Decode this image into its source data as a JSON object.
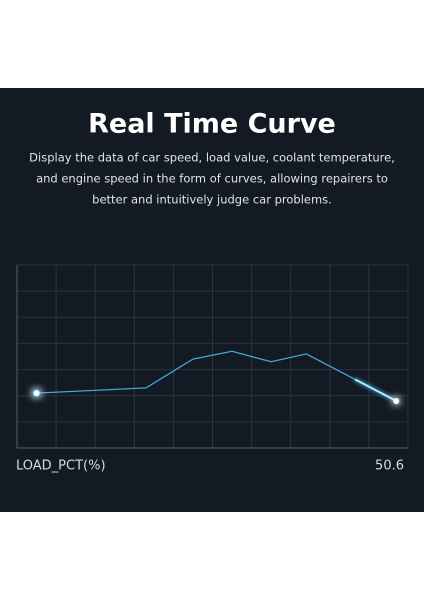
{
  "chart_data": {
    "type": "line",
    "title": "Real Time Curve",
    "subtitle": [
      "Display the data of car speed, load value, coolant temperature,",
      "and engine speed in the form of curves, allowing repairers to",
      "better and intuitively judge car problems."
    ],
    "x": [
      0.5,
      3.3,
      4.5,
      5.5,
      6.5,
      7.4,
      9.7
    ],
    "series": [
      {
        "name": "LOAD_PCT(%)",
        "color": "#3fa9d4",
        "values": [
          2.1,
          2.3,
          3.4,
          3.7,
          3.3,
          3.6,
          1.8
        ]
      }
    ],
    "current_value": 50.6,
    "xlim": [
      0,
      10
    ],
    "ylim": [
      0,
      7
    ],
    "xticks": [
      0,
      1,
      2,
      3,
      4,
      5,
      6,
      7,
      8,
      9,
      10
    ],
    "yticks": [
      0,
      1,
      2,
      3,
      4,
      5,
      6,
      7
    ],
    "grid": true
  }
}
